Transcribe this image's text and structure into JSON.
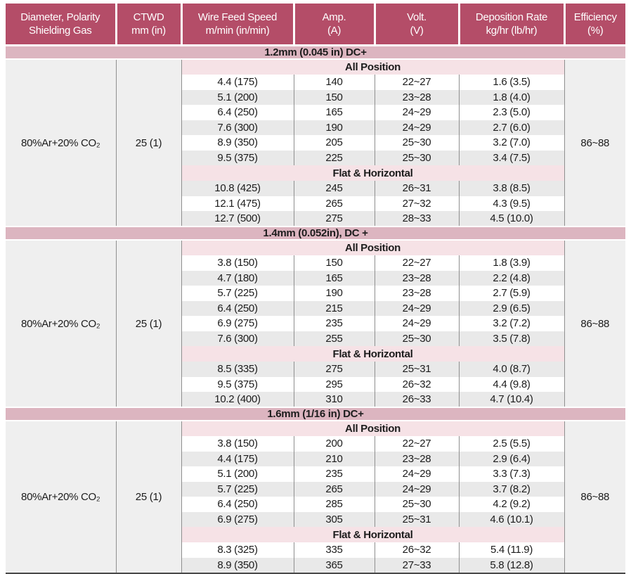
{
  "colors": {
    "header_bg": "#b44d68",
    "section_band_bg": "#dcb5c0",
    "group_band_bg": "#f6e2e6",
    "row_alt_bg": "#e9e9e9",
    "side_bg": "#efefef",
    "line": "#8f8f8f",
    "bottom_line": "#4a4a4a",
    "header_text": "#ffffff",
    "body_text": "#1c1c1c"
  },
  "table": {
    "columns": [
      {
        "line1": "Diameter, Polarity",
        "line2": "Shielding Gas"
      },
      {
        "line1": "CTWD",
        "line2": "mm (in)"
      },
      {
        "line1": "Wire Feed Speed",
        "line2": "m/min (in/min)"
      },
      {
        "line1": "Amp.",
        "line2": "(A)"
      },
      {
        "line1": "Volt.",
        "line2": "(V)"
      },
      {
        "line1": "Deposition Rate",
        "line2": "kg/hr (lb/hr)"
      },
      {
        "line1": "Efficiency",
        "line2": "(%)"
      }
    ],
    "sections": [
      {
        "title": "1.2mm (0.045 in) DC+",
        "gas": "80%Ar+20% CO₂",
        "ctwd": "25 (1)",
        "efficiency": "86~88",
        "groups": [
          {
            "label": "All Position",
            "rows": [
              [
                "4.4 (175)",
                "140",
                "22~27",
                "1.6 (3.5)"
              ],
              [
                "5.1 (200)",
                "150",
                "23~28",
                "1.8 (4.0)"
              ],
              [
                "6.4 (250)",
                "165",
                "24~29",
                "2.3 (5.0)"
              ],
              [
                "7.6 (300)",
                "190",
                "24~29",
                "2.7 (6.0)"
              ],
              [
                "8.9 (350)",
                "205",
                "25~30",
                "3.2 (7.0)"
              ],
              [
                "9.5 (375)",
                "225",
                "25~30",
                "3.4 (7.5)"
              ]
            ]
          },
          {
            "label": "Flat & Horizontal",
            "rows": [
              [
                "10.8 (425)",
                "245",
                "26~31",
                "3.8 (8.5)"
              ],
              [
                "12.1 (475)",
                "265",
                "27~32",
                "4.3 (9.5)"
              ],
              [
                "12.7 (500)",
                "275",
                "28~33",
                "4.5 (10.0)"
              ]
            ]
          }
        ]
      },
      {
        "title": "1.4mm (0.052in), DC +",
        "gas": "80%Ar+20% CO₂",
        "ctwd": "25 (1)",
        "efficiency": "86~88",
        "groups": [
          {
            "label": "All Position",
            "rows": [
              [
                "3.8 (150)",
                "150",
                "22~27",
                "1.8 (3.9)"
              ],
              [
                "4.7 (180)",
                "165",
                "23~28",
                "2.2 (4.8)"
              ],
              [
                "5.7 (225)",
                "190",
                "23~28",
                "2.7 (5.9)"
              ],
              [
                "6.4 (250)",
                "215",
                "24~29",
                "2.9 (6.5)"
              ],
              [
                "6.9 (275)",
                "235",
                "24~29",
                "3.2 (7.2)"
              ],
              [
                "7.6 (300)",
                "255",
                "25~30",
                "3.5 (7.8)"
              ]
            ]
          },
          {
            "label": "Flat & Horizontal",
            "rows": [
              [
                "8.5 (335)",
                "275",
                "25~31",
                "4.0 (8.7)"
              ],
              [
                "9.5 (375)",
                "295",
                "26~32",
                "4.4 (9.8)"
              ],
              [
                "10.2 (400)",
                "310",
                "26~33",
                "4.7 (10.4)"
              ]
            ]
          }
        ]
      },
      {
        "title": "1.6mm (1/16 in) DC+",
        "gas": "80%Ar+20% CO₂",
        "ctwd": "25 (1)",
        "efficiency": "86~88",
        "groups": [
          {
            "label": "All Position",
            "rows": [
              [
                "3.8 (150)",
                "200",
                "22~27",
                "2.5 (5.5)"
              ],
              [
                "4.4 (175)",
                "210",
                "23~28",
                "2.9 (6.4)"
              ],
              [
                "5.1 (200)",
                "235",
                "24~29",
                "3.3 (7.3)"
              ],
              [
                "5.7 (225)",
                "265",
                "24~29",
                "3.7 (8.2)"
              ],
              [
                "6.4 (250)",
                "285",
                "25~30",
                "4.2 (9.2)"
              ],
              [
                "6.9 (275)",
                "305",
                "25~31",
                "4.6 (10.1)"
              ]
            ]
          },
          {
            "label": "Flat & Horizontal",
            "rows": [
              [
                "8.3 (325)",
                "335",
                "26~32",
                "5.4 (11.9)"
              ],
              [
                "8.9 (350)",
                "365",
                "27~33",
                "5.8 (12.8)"
              ]
            ]
          }
        ]
      }
    ]
  }
}
